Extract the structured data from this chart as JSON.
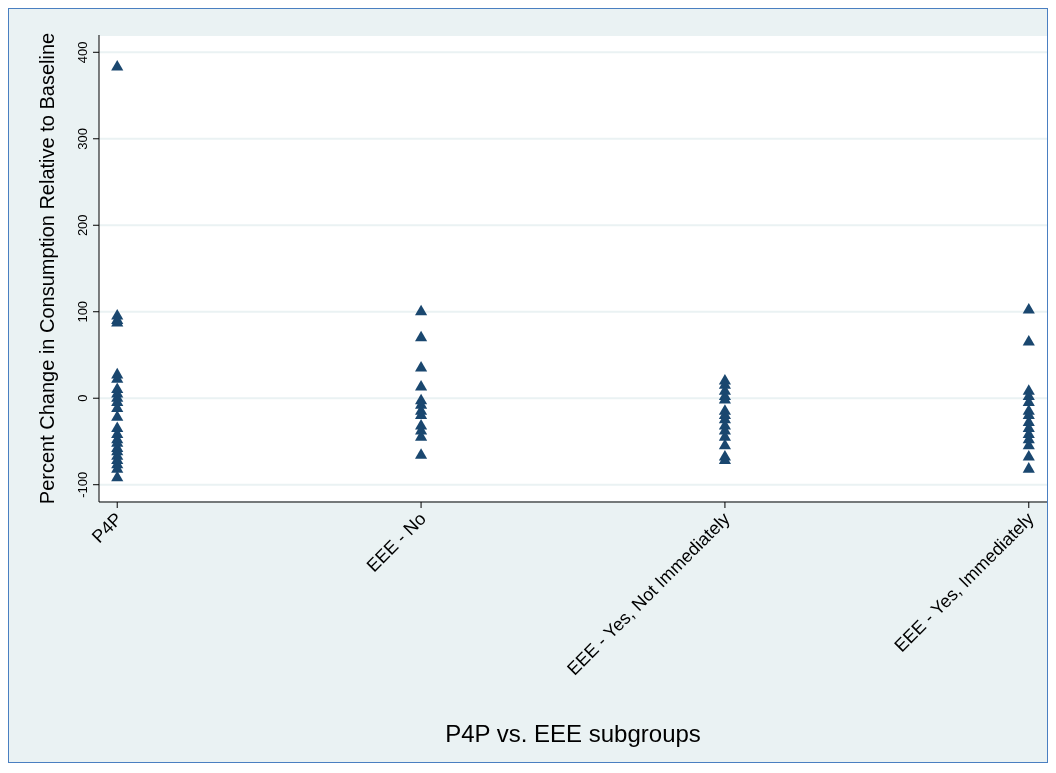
{
  "chart_data": {
    "type": "scatter",
    "xlabel": "P4P vs. EEE subgroups",
    "ylabel": "Percent Change in Consumption Relative to Baseline",
    "categories": [
      "P4P",
      "EEE - No",
      "EEE - Yes, Not Immediately",
      "EEE - Yes, Immediately"
    ],
    "series": [
      {
        "color": "#1a476f",
        "x": [
          "P4P",
          "P4P",
          "P4P",
          "P4P",
          "P4P",
          "P4P",
          "P4P",
          "P4P",
          "P4P",
          "P4P",
          "P4P",
          "P4P",
          "P4P",
          "P4P",
          "P4P",
          "P4P",
          "P4P",
          "P4P",
          "P4P",
          "P4P",
          "P4P",
          "P4P",
          "P4P",
          "EEE - No",
          "EEE - No",
          "EEE - No",
          "EEE - No",
          "EEE - No",
          "EEE - No",
          "EEE - No",
          "EEE - No",
          "EEE - No",
          "EEE - No",
          "EEE - No",
          "EEE - No",
          "EEE - Yes, Not Immediately",
          "EEE - Yes, Not Immediately",
          "EEE - Yes, Not Immediately",
          "EEE - Yes, Not Immediately",
          "EEE - Yes, Not Immediately",
          "EEE - Yes, Not Immediately",
          "EEE - Yes, Not Immediately",
          "EEE - Yes, Not Immediately",
          "EEE - Yes, Not Immediately",
          "EEE - Yes, Not Immediately",
          "EEE - Yes, Not Immediately",
          "EEE - Yes, Not Immediately",
          "EEE - Yes, Not Immediately",
          "EEE - Yes, Not Immediately",
          "EEE - Yes, Immediately",
          "EEE - Yes, Immediately",
          "EEE - Yes, Immediately",
          "EEE - Yes, Immediately",
          "EEE - Yes, Immediately",
          "EEE - Yes, Immediately",
          "EEE - Yes, Immediately",
          "EEE - Yes, Immediately",
          "EEE - Yes, Immediately",
          "EEE - Yes, Immediately",
          "EEE - Yes, Immediately",
          "EEE - Yes, Immediately",
          "EEE - Yes, Immediately",
          "EEE - Yes, Immediately"
        ],
        "values": [
          383,
          95,
          90,
          87,
          27,
          22,
          10,
          5,
          0,
          -5,
          -12,
          -22,
          -35,
          -42,
          -48,
          -52,
          -58,
          -62,
          -67,
          -72,
          -77,
          -82,
          -92,
          100,
          70,
          35,
          13,
          -3,
          -8,
          -15,
          -20,
          -32,
          -38,
          -45,
          -66,
          20,
          15,
          8,
          2,
          -2,
          -15,
          -20,
          -25,
          -32,
          -38,
          -45,
          -55,
          -68,
          -72,
          102,
          65,
          8,
          2,
          -5,
          -15,
          -20,
          -28,
          -35,
          -42,
          -48,
          -55,
          -68,
          -82
        ]
      }
    ],
    "ylim": [
      -120,
      420
    ],
    "yticks": [
      -100,
      0,
      100,
      200,
      300,
      400
    ],
    "grid": "y",
    "marker": "triangle"
  }
}
